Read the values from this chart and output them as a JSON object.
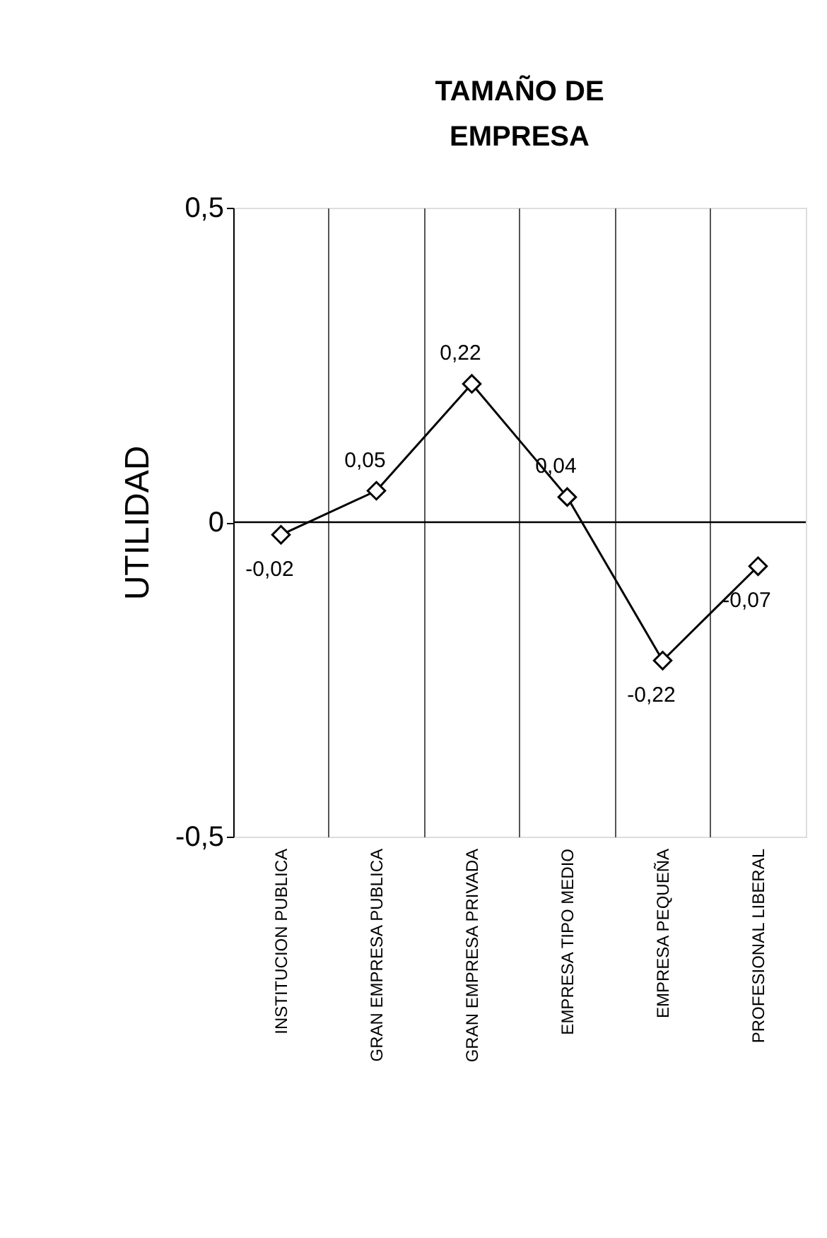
{
  "chart_data": {
    "type": "line",
    "title": [
      "TAMAÑO DE",
      "EMPRESA"
    ],
    "ylabel": "UTILIDAD",
    "categories": [
      "INSTITUCION PUBLICA",
      "GRAN EMPRESA PUBLICA",
      "GRAN EMPRESA PRIVADA",
      "EMPRESA TIPO MEDIO",
      "EMPRESA PEQUEÑA",
      "PROFESIONAL LIBERAL"
    ],
    "series": [
      {
        "color": "#000000",
        "values": [
          -0.02,
          0.05,
          0.22,
          0.04,
          -0.22,
          -0.07
        ]
      }
    ],
    "value_labels": [
      "-0,02",
      "0,05",
      "0,22",
      "0,04",
      "-0,22",
      "-0,07"
    ],
    "ylim": [
      -0.5,
      0.5
    ],
    "yticks": [
      {
        "value": -0.5,
        "label": "-0,5"
      },
      0,
      {
        "value": 0.5,
        "label": "0,5"
      }
    ],
    "ref_lines": [
      {
        "axis": "y",
        "value": 0,
        "label": null
      }
    ],
    "grid": "x",
    "marker": "diamond",
    "line_style": "solid"
  }
}
